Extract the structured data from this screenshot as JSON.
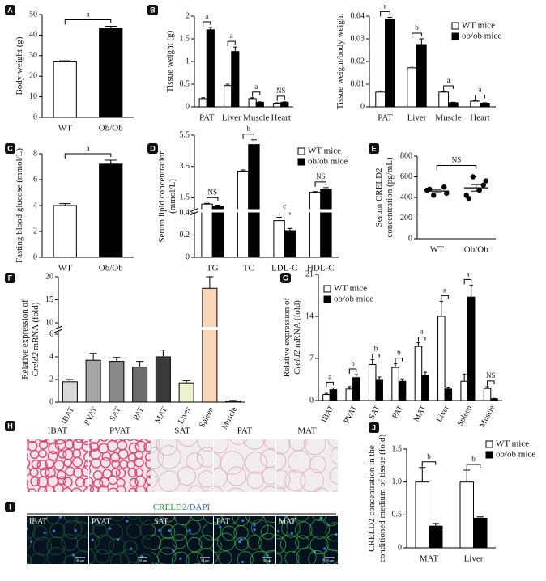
{
  "chart_data": [
    {
      "type": "bar",
      "label": "A",
      "ylabel": "Body weight (g)",
      "categories": [
        "WT",
        "Ob/Ob"
      ],
      "values": [
        27,
        43.5
      ],
      "errors": [
        0.5,
        0.8
      ],
      "colors": [
        "#ffffff",
        "#000000"
      ],
      "ylim": [
        0,
        50
      ],
      "yticks": [
        0,
        10,
        20,
        30,
        40,
        50
      ],
      "significance": [
        "a"
      ]
    },
    {
      "type": "bar",
      "label": "B",
      "ylabel": "Tissue weight (g)",
      "categories": [
        "PAT",
        "Liver",
        "Muscle",
        "Heart"
      ],
      "series": [
        {
          "color": "#ffffff",
          "values": [
            0.18,
            0.47,
            0.18,
            0.08
          ],
          "errors": [
            0.02,
            0.03,
            0.02,
            0.01
          ]
        },
        {
          "color": "#000000",
          "values": [
            1.7,
            1.22,
            0.1,
            0.1
          ],
          "errors": [
            0.05,
            0.1,
            0.01,
            0.01
          ]
        }
      ],
      "ylim": [
        0,
        2
      ],
      "yticks": [
        0,
        0.5,
        1,
        1.5,
        2
      ],
      "significance": [
        "a",
        "a",
        "a",
        "NS"
      ]
    },
    {
      "type": "bar",
      "ylabel": "Tissue weight/body weight",
      "categories": [
        "PAT",
        "Liver",
        "Muscle",
        "Heart"
      ],
      "series": [
        {
          "name": "WT mice",
          "color": "#ffffff",
          "values": [
            0.0065,
            0.0172,
            0.0065,
            0.0025
          ],
          "errors": [
            0.0005,
            0.0008,
            0.0003,
            0.0002
          ]
        },
        {
          "name": "ob/ob mice",
          "color": "#000000",
          "values": [
            0.0385,
            0.0275,
            0.0018,
            0.0016
          ],
          "errors": [
            0.001,
            0.0025,
            0.0002,
            0.0002
          ]
        }
      ],
      "ylim": [
        0,
        0.04
      ],
      "yticks": [
        0,
        0.01,
        0.02,
        0.03,
        0.04
      ],
      "significance": [
        "a",
        "b",
        "a",
        "a"
      ],
      "legend": "top-right"
    },
    {
      "type": "bar",
      "label": "C",
      "ylabel": "Fasting blood glucose (mmol/L)",
      "categories": [
        "WT",
        "Ob/Ob"
      ],
      "values": [
        4,
        7.2
      ],
      "errors": [
        0.15,
        0.3
      ],
      "colors": [
        "#ffffff",
        "#000000"
      ],
      "ylim": [
        0,
        8
      ],
      "yticks": [
        0,
        2,
        4,
        6,
        8
      ],
      "significance": [
        "a"
      ]
    },
    {
      "type": "bar",
      "label": "D",
      "ylabel": [
        "Serum lipid concentration",
        "(mmol/L)"
      ],
      "categories": [
        "TG",
        "TC",
        "LDL-C",
        "HDL-C"
      ],
      "series": [
        {
          "name": "WT mice",
          "color": "#ffffff",
          "values": [
            1.1,
            3.2,
            0.33,
            1.85
          ],
          "errors": [
            0.05,
            0.08,
            0.03,
            0.05
          ]
        },
        {
          "name": "ob/ob mice",
          "color": "#000000",
          "values": [
            0.98,
            4.9,
            0.24,
            2.05
          ],
          "errors": [
            0.05,
            0.3,
            0.02,
            0.1
          ]
        }
      ],
      "segments": [
        {
          "ylim": [
            0,
            0.4
          ],
          "yticks": [
            0,
            0.2,
            0.4
          ]
        },
        {
          "ylim": [
            0.8,
            5.5
          ],
          "yticks": [
            1.5,
            3.5,
            5.5
          ]
        }
      ],
      "significance": [
        "NS",
        "b",
        "c",
        "NS"
      ],
      "legend": "top-right"
    },
    {
      "type": "dot",
      "label": "E",
      "ylabel": [
        "Serum CRELD2",
        "concentration (pg/mL)"
      ],
      "categories": [
        "WT",
        "Ob/Ob"
      ],
      "points": [
        [
          470,
          500,
          420,
          440,
          480
        ],
        [
          420,
          520,
          600,
          560,
          390,
          470
        ]
      ],
      "mean": [
        462,
        493
      ],
      "sem": [
        15,
        32
      ],
      "ylim": [
        0,
        800
      ],
      "yticks": [
        0,
        200,
        400,
        600,
        800
      ],
      "significance": [
        "NS"
      ]
    },
    {
      "type": "bar",
      "label": "F",
      "ylabel": [
        [
          {
            "text": "Relative expression of"
          }
        ],
        [
          {
            "text": "Creld2",
            "italic": true
          },
          {
            "text": " mRNA (fold)"
          }
        ]
      ],
      "categories": [
        "IBAT",
        "PVAT",
        "SAT",
        "PAT",
        "MAT",
        "Liver",
        "Spleen",
        "Muscle"
      ],
      "values": [
        1.8,
        3.7,
        3.6,
        3.1,
        4.0,
        1.7,
        17.5,
        0.1
      ],
      "errors": [
        0.2,
        0.6,
        0.35,
        0.5,
        0.6,
        0.2,
        2.5,
        0.05
      ],
      "colors": [
        "#d9d9d9",
        "#a6a6a6",
        "#8a8a8a",
        "#6e6e6e",
        "#3a3a3a",
        "#eef3cf",
        "#fbd6b8",
        "#333333"
      ],
      "segments": [
        {
          "ylim": [
            0,
            6
          ],
          "yticks": [
            0,
            2,
            4,
            6
          ]
        },
        {
          "ylim": [
            10,
            20
          ],
          "yticks": [
            10,
            15,
            20
          ]
        }
      ]
    },
    {
      "type": "bar",
      "label": "G",
      "ylabel": [
        [
          {
            "text": "Relative expression of"
          }
        ],
        [
          {
            "text": "Creld2",
            "italic": true
          },
          {
            "text": " mRNA (fold)"
          }
        ]
      ],
      "categories": [
        "IBAT",
        "PVAT",
        "SAT",
        "PAT",
        "MAT",
        "Liver",
        "Spleen",
        "Muscle"
      ],
      "series": [
        {
          "name": "WT mice",
          "color": "#ffffff",
          "values": [
            1.0,
            1.9,
            6.0,
            5.5,
            9.0,
            14.0,
            3.2,
            2.0
          ],
          "errors": [
            0.2,
            0.4,
            0.8,
            0.6,
            0.6,
            2.5,
            1.2,
            0.3
          ]
        },
        {
          "name": "ob/ob mice",
          "color": "#000000",
          "values": [
            1.8,
            3.8,
            3.5,
            3.2,
            4.2,
            1.9,
            17.2,
            0.3
          ],
          "errors": [
            0.3,
            0.5,
            0.4,
            0.4,
            0.5,
            0.3,
            2.0,
            0.05
          ]
        }
      ],
      "ylim": [
        0,
        21
      ],
      "yticks": [
        0,
        7,
        14,
        21
      ],
      "significance": [
        "a",
        "b",
        "b",
        "b",
        "a",
        "a",
        "a",
        "NS"
      ],
      "legend": "top-left"
    },
    {
      "type": "bar",
      "label": "J",
      "ylabel": [
        "CRELD2 concentration in the",
        "conditioned medium of tissue (fold)"
      ],
      "categories": [
        "MAT",
        "Liver"
      ],
      "series": [
        {
          "name": "WT mice",
          "color": "#ffffff",
          "values": [
            1.0,
            1.0
          ],
          "errors": [
            0.22,
            0.18
          ]
        },
        {
          "name": "ob/ob mice",
          "color": "#000000",
          "values": [
            0.33,
            0.45
          ],
          "errors": [
            0.04,
            0.02
          ]
        }
      ],
      "ylim": [
        0,
        1.5
      ],
      "yticks": [
        0,
        0.5,
        {
          "value": 1,
          "label": "1.0"
        },
        1.5
      ],
      "significance": [
        "b",
        "b"
      ],
      "legend": "top-right"
    }
  ],
  "histology": {
    "label": "H",
    "tiles": [
      "IBAT",
      "PVAT",
      "SAT",
      "PAT",
      "MAT"
    ]
  },
  "immunofluorescence": {
    "label": "I",
    "title": [
      "CRELD2",
      "/DAPI"
    ],
    "tiles": [
      "IBAT",
      "PVAT",
      "SAT",
      "PAT",
      "MAT"
    ],
    "scale_bar": "50 μm"
  }
}
